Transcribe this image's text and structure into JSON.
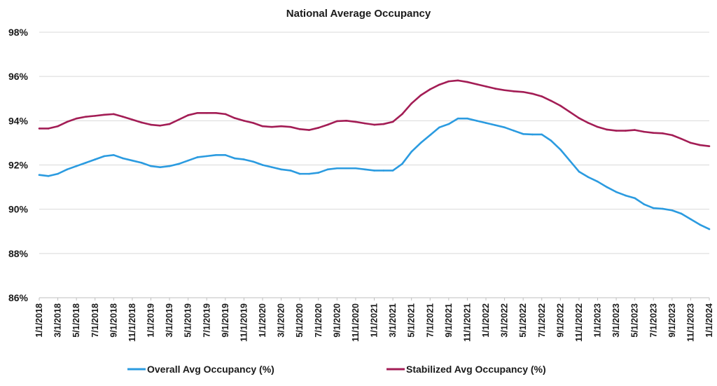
{
  "chart_data": {
    "type": "line",
    "title": "National Average Occupancy",
    "xlabel": "",
    "ylabel": "",
    "ylim": [
      86,
      98
    ],
    "y_ticks": [
      "98%",
      "96%",
      "94%",
      "92%",
      "90%",
      "88%",
      "86%"
    ],
    "y_tick_values": [
      98,
      96,
      94,
      92,
      90,
      88,
      86
    ],
    "x_tick_labels": [
      "1/1/2018",
      "3/1/2018",
      "5/1/2018",
      "7/1/2018",
      "9/1/2018",
      "11/1/2018",
      "1/1/2019",
      "3/1/2019",
      "5/1/2019",
      "7/1/2019",
      "9/1/2019",
      "11/1/2019",
      "1/1/2020",
      "3/1/2020",
      "5/1/2020",
      "7/1/2020",
      "9/1/2020",
      "11/1/2020",
      "1/1/2021",
      "3/1/2021",
      "5/1/2021",
      "7/1/2021",
      "9/1/2021",
      "11/1/2021",
      "1/1/2022",
      "3/1/2022",
      "5/1/2022",
      "7/1/2022",
      "9/1/2022",
      "11/1/2022",
      "1/1/2023",
      "3/1/2023",
      "5/1/2023",
      "7/1/2023",
      "9/1/2023",
      "11/1/2023",
      "1/1/2024"
    ],
    "x": [
      "1/1/2018",
      "2/1/2018",
      "3/1/2018",
      "4/1/2018",
      "5/1/2018",
      "6/1/2018",
      "7/1/2018",
      "8/1/2018",
      "9/1/2018",
      "10/1/2018",
      "11/1/2018",
      "12/1/2018",
      "1/1/2019",
      "2/1/2019",
      "3/1/2019",
      "4/1/2019",
      "5/1/2019",
      "6/1/2019",
      "7/1/2019",
      "8/1/2019",
      "9/1/2019",
      "10/1/2019",
      "11/1/2019",
      "12/1/2019",
      "1/1/2020",
      "2/1/2020",
      "3/1/2020",
      "4/1/2020",
      "5/1/2020",
      "6/1/2020",
      "7/1/2020",
      "8/1/2020",
      "9/1/2020",
      "10/1/2020",
      "11/1/2020",
      "12/1/2020",
      "1/1/2021",
      "2/1/2021",
      "3/1/2021",
      "4/1/2021",
      "5/1/2021",
      "6/1/2021",
      "7/1/2021",
      "8/1/2021",
      "9/1/2021",
      "10/1/2021",
      "11/1/2021",
      "12/1/2021",
      "1/1/2022",
      "2/1/2022",
      "3/1/2022",
      "4/1/2022",
      "5/1/2022",
      "6/1/2022",
      "7/1/2022",
      "8/1/2022",
      "9/1/2022",
      "10/1/2022",
      "11/1/2022",
      "12/1/2022",
      "1/1/2023",
      "2/1/2023",
      "3/1/2023",
      "4/1/2023",
      "5/1/2023",
      "6/1/2023",
      "7/1/2023",
      "8/1/2023",
      "9/1/2023",
      "10/1/2023",
      "11/1/2023",
      "12/1/2023",
      "1/1/2024"
    ],
    "series": [
      {
        "name": "Overall Avg Occupancy (%)",
        "color": "#2b9be0",
        "values": [
          91.55,
          91.5,
          91.6,
          91.8,
          91.95,
          92.1,
          92.25,
          92.4,
          92.45,
          92.3,
          92.2,
          92.1,
          91.95,
          91.9,
          91.95,
          92.05,
          92.2,
          92.35,
          92.4,
          92.45,
          92.45,
          92.3,
          92.25,
          92.15,
          92.0,
          91.9,
          91.8,
          91.75,
          91.6,
          91.6,
          91.65,
          91.8,
          91.85,
          91.85,
          91.85,
          91.8,
          91.75,
          91.75,
          91.75,
          92.05,
          92.6,
          93.0,
          93.35,
          93.7,
          93.85,
          94.1,
          94.1,
          94.0,
          93.9,
          93.8,
          93.7,
          93.55,
          93.4,
          93.38,
          93.38,
          93.1,
          92.7,
          92.2,
          91.7,
          91.45,
          91.25,
          91.0,
          90.78,
          90.62,
          90.5,
          90.22,
          90.05,
          90.02,
          89.95,
          89.8,
          89.55,
          89.3,
          89.1
        ]
      },
      {
        "name": "Stabilized Avg Occupancy (%)",
        "color": "#a31d55",
        "values": [
          93.65,
          93.65,
          93.75,
          93.95,
          94.1,
          94.18,
          94.22,
          94.27,
          94.3,
          94.18,
          94.05,
          93.92,
          93.82,
          93.78,
          93.85,
          94.05,
          94.25,
          94.35,
          94.35,
          94.35,
          94.3,
          94.12,
          94.0,
          93.9,
          93.75,
          93.72,
          93.75,
          93.72,
          93.62,
          93.58,
          93.68,
          93.82,
          93.98,
          94.0,
          93.95,
          93.88,
          93.82,
          93.85,
          93.95,
          94.3,
          94.78,
          95.15,
          95.42,
          95.63,
          95.78,
          95.82,
          95.75,
          95.65,
          95.55,
          95.45,
          95.38,
          95.33,
          95.3,
          95.22,
          95.1,
          94.9,
          94.68,
          94.4,
          94.12,
          93.9,
          93.72,
          93.6,
          93.55,
          93.55,
          93.58,
          93.5,
          93.45,
          93.43,
          93.35,
          93.18,
          93.0,
          92.9,
          92.85
        ]
      }
    ],
    "legend_position": "bottom",
    "grid": true
  }
}
